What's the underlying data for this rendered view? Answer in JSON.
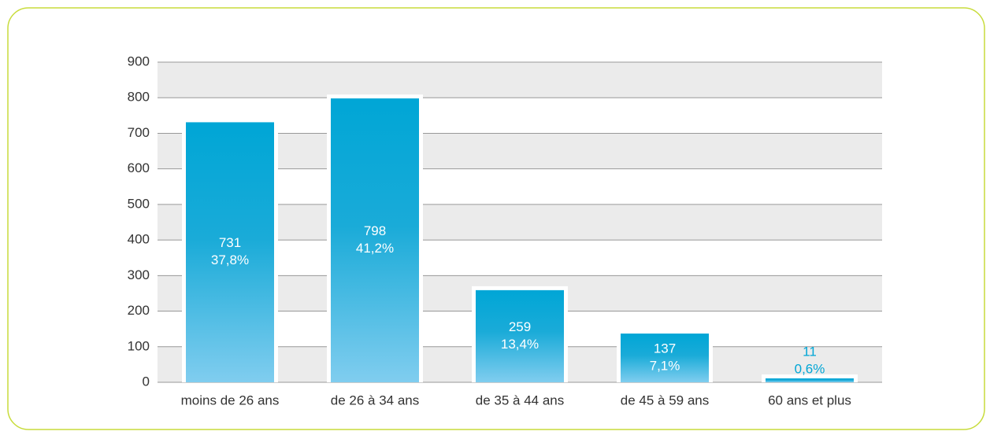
{
  "chart_data": {
    "type": "bar",
    "categories": [
      "moins de 26 ans",
      "de 26 à 34 ans",
      "de 35 à 44 ans",
      "de 45 à 59 ans",
      "60 ans et plus"
    ],
    "values": [
      731,
      798,
      259,
      137,
      11
    ],
    "percent_labels": [
      "37,8%",
      "41,2%",
      "13,4%",
      "7,1%",
      "0,6%"
    ],
    "color": "#00a6d6",
    "ylim": [
      0,
      900
    ],
    "yticks": [
      0,
      100,
      200,
      300,
      400,
      500,
      600,
      700,
      800,
      900
    ],
    "grid": true
  }
}
